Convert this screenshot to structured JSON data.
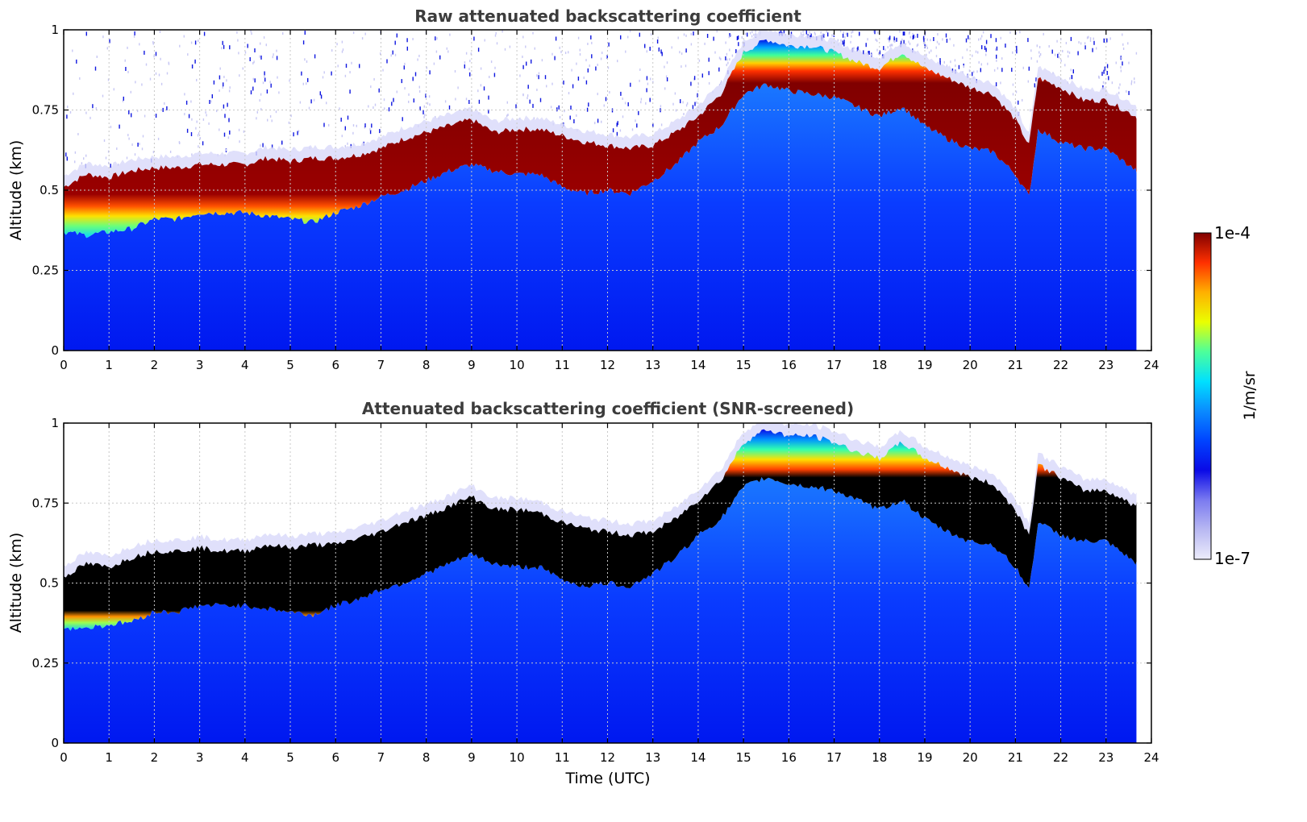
{
  "chart_data": [
    {
      "type": "heatmap",
      "title": "Raw attenuated backscattering coefficient",
      "xlabel": "",
      "ylabel": "Altitude (km)",
      "xlim": [
        0,
        24
      ],
      "ylim": [
        0,
        1
      ],
      "x_ticks": [
        "0",
        "1",
        "2",
        "3",
        "4",
        "5",
        "6",
        "7",
        "8",
        "9",
        "10",
        "11",
        "12",
        "13",
        "14",
        "15",
        "16",
        "17",
        "18",
        "19",
        "20",
        "21",
        "22",
        "23",
        "24"
      ],
      "y_ticks": [
        "0",
        "0.25",
        "0.5",
        "0.75",
        "1"
      ],
      "grid": true,
      "data_end_hour": 23.67,
      "layer_top_km": [
        [
          0,
          0.51
        ],
        [
          0.5,
          0.55
        ],
        [
          1,
          0.54
        ],
        [
          1.5,
          0.56
        ],
        [
          2,
          0.57
        ],
        [
          2.5,
          0.57
        ],
        [
          3,
          0.58
        ],
        [
          3.5,
          0.58
        ],
        [
          4,
          0.58
        ],
        [
          4.5,
          0.6
        ],
        [
          5,
          0.59
        ],
        [
          5.5,
          0.6
        ],
        [
          6,
          0.6
        ],
        [
          6.5,
          0.61
        ],
        [
          7,
          0.63
        ],
        [
          7.5,
          0.66
        ],
        [
          8,
          0.68
        ],
        [
          8.5,
          0.7
        ],
        [
          9,
          0.72
        ],
        [
          9.5,
          0.68
        ],
        [
          10,
          0.69
        ],
        [
          10.5,
          0.69
        ],
        [
          11,
          0.67
        ],
        [
          11.5,
          0.65
        ],
        [
          12,
          0.64
        ],
        [
          12.5,
          0.63
        ],
        [
          13,
          0.64
        ],
        [
          13.5,
          0.68
        ],
        [
          14,
          0.73
        ],
        [
          14.5,
          0.8
        ],
        [
          15,
          0.93
        ],
        [
          15.5,
          0.97
        ],
        [
          16,
          0.95
        ],
        [
          16.5,
          0.95
        ],
        [
          17,
          0.93
        ],
        [
          17.5,
          0.9
        ],
        [
          18,
          0.88
        ],
        [
          18.5,
          0.93
        ],
        [
          19,
          0.88
        ],
        [
          19.5,
          0.85
        ],
        [
          20,
          0.82
        ],
        [
          20.5,
          0.8
        ],
        [
          21,
          0.72
        ],
        [
          21.3,
          0.64
        ],
        [
          21.5,
          0.85
        ],
        [
          22,
          0.82
        ],
        [
          22.5,
          0.78
        ],
        [
          23,
          0.78
        ],
        [
          23.67,
          0.73
        ]
      ],
      "layer_base_km": [
        [
          0,
          0.37
        ],
        [
          0.5,
          0.36
        ],
        [
          1,
          0.37
        ],
        [
          1.5,
          0.38
        ],
        [
          2,
          0.41
        ],
        [
          2.5,
          0.41
        ],
        [
          3,
          0.43
        ],
        [
          3.5,
          0.43
        ],
        [
          4,
          0.43
        ],
        [
          4.5,
          0.42
        ],
        [
          5,
          0.41
        ],
        [
          5.5,
          0.4
        ],
        [
          6,
          0.43
        ],
        [
          6.5,
          0.45
        ],
        [
          7,
          0.48
        ],
        [
          7.5,
          0.5
        ],
        [
          8,
          0.53
        ],
        [
          8.5,
          0.56
        ],
        [
          9,
          0.58
        ],
        [
          9.5,
          0.56
        ],
        [
          10,
          0.55
        ],
        [
          10.5,
          0.55
        ],
        [
          11,
          0.51
        ],
        [
          11.5,
          0.49
        ],
        [
          12,
          0.5
        ],
        [
          12.5,
          0.49
        ],
        [
          13,
          0.53
        ],
        [
          13.5,
          0.58
        ],
        [
          14,
          0.65
        ],
        [
          14.5,
          0.7
        ],
        [
          15,
          0.8
        ],
        [
          15.5,
          0.83
        ],
        [
          16,
          0.81
        ],
        [
          16.5,
          0.8
        ],
        [
          17,
          0.79
        ],
        [
          17.5,
          0.76
        ],
        [
          18,
          0.73
        ],
        [
          18.5,
          0.76
        ],
        [
          19,
          0.7
        ],
        [
          19.5,
          0.66
        ],
        [
          20,
          0.63
        ],
        [
          20.5,
          0.62
        ],
        [
          21,
          0.55
        ],
        [
          21.3,
          0.48
        ],
        [
          21.5,
          0.69
        ],
        [
          22,
          0.65
        ],
        [
          22.5,
          0.63
        ],
        [
          23,
          0.63
        ],
        [
          23.67,
          0.56
        ]
      ]
    },
    {
      "type": "heatmap",
      "title": "Attenuated backscattering coefficient (SNR-screened)",
      "xlabel": "Time (UTC)",
      "ylabel": "Altitude (km)",
      "xlim": [
        0,
        24
      ],
      "ylim": [
        0,
        1
      ],
      "x_ticks": [
        "0",
        "1",
        "2",
        "3",
        "4",
        "5",
        "6",
        "7",
        "8",
        "9",
        "10",
        "11",
        "12",
        "13",
        "14",
        "15",
        "16",
        "17",
        "18",
        "19",
        "20",
        "21",
        "22",
        "23",
        "24"
      ],
      "y_ticks": [
        "0",
        "0.25",
        "0.5",
        "0.75",
        "1"
      ],
      "grid": true,
      "data_end_hour": 23.67,
      "saturated_color": "#000000",
      "layer_top_km": [
        [
          0,
          0.52
        ],
        [
          0.5,
          0.56
        ],
        [
          1,
          0.55
        ],
        [
          1.5,
          0.58
        ],
        [
          2,
          0.6
        ],
        [
          2.5,
          0.6
        ],
        [
          3,
          0.61
        ],
        [
          3.5,
          0.6
        ],
        [
          4,
          0.6
        ],
        [
          4.5,
          0.62
        ],
        [
          5,
          0.61
        ],
        [
          5.5,
          0.62
        ],
        [
          6,
          0.62
        ],
        [
          6.5,
          0.64
        ],
        [
          7,
          0.66
        ],
        [
          7.5,
          0.69
        ],
        [
          8,
          0.71
        ],
        [
          8.5,
          0.74
        ],
        [
          9,
          0.77
        ],
        [
          9.5,
          0.73
        ],
        [
          10,
          0.73
        ],
        [
          10.5,
          0.72
        ],
        [
          11,
          0.69
        ],
        [
          11.5,
          0.67
        ],
        [
          12,
          0.66
        ],
        [
          12.5,
          0.65
        ],
        [
          13,
          0.66
        ],
        [
          13.5,
          0.7
        ],
        [
          14,
          0.76
        ],
        [
          14.5,
          0.82
        ],
        [
          15,
          0.94
        ],
        [
          15.5,
          0.98
        ],
        [
          16,
          0.96
        ],
        [
          16.5,
          0.96
        ],
        [
          17,
          0.94
        ],
        [
          17.5,
          0.91
        ],
        [
          18,
          0.89
        ],
        [
          18.5,
          0.94
        ],
        [
          19,
          0.89
        ],
        [
          19.5,
          0.86
        ],
        [
          20,
          0.83
        ],
        [
          20.5,
          0.81
        ],
        [
          21,
          0.73
        ],
        [
          21.3,
          0.65
        ],
        [
          21.5,
          0.87
        ],
        [
          22,
          0.83
        ],
        [
          22.5,
          0.79
        ],
        [
          23,
          0.79
        ],
        [
          23.67,
          0.74
        ]
      ],
      "layer_base_km": [
        [
          0,
          0.36
        ],
        [
          0.5,
          0.36
        ],
        [
          1,
          0.37
        ],
        [
          1.5,
          0.38
        ],
        [
          2,
          0.41
        ],
        [
          2.5,
          0.41
        ],
        [
          3,
          0.43
        ],
        [
          3.5,
          0.43
        ],
        [
          4,
          0.43
        ],
        [
          4.5,
          0.42
        ],
        [
          5,
          0.41
        ],
        [
          5.5,
          0.4
        ],
        [
          6,
          0.43
        ],
        [
          6.5,
          0.45
        ],
        [
          7,
          0.48
        ],
        [
          7.5,
          0.5
        ],
        [
          8,
          0.53
        ],
        [
          8.5,
          0.56
        ],
        [
          9,
          0.59
        ],
        [
          9.5,
          0.56
        ],
        [
          10,
          0.55
        ],
        [
          10.5,
          0.55
        ],
        [
          11,
          0.51
        ],
        [
          11.5,
          0.49
        ],
        [
          12,
          0.5
        ],
        [
          12.5,
          0.49
        ],
        [
          13,
          0.53
        ],
        [
          13.5,
          0.58
        ],
        [
          14,
          0.65
        ],
        [
          14.5,
          0.7
        ],
        [
          15,
          0.8
        ],
        [
          15.5,
          0.83
        ],
        [
          16,
          0.81
        ],
        [
          16.5,
          0.8
        ],
        [
          17,
          0.79
        ],
        [
          17.5,
          0.76
        ],
        [
          18,
          0.73
        ],
        [
          18.5,
          0.76
        ],
        [
          19,
          0.7
        ],
        [
          19.5,
          0.66
        ],
        [
          20,
          0.63
        ],
        [
          20.5,
          0.62
        ],
        [
          21,
          0.55
        ],
        [
          21.3,
          0.48
        ],
        [
          21.5,
          0.69
        ],
        [
          22,
          0.65
        ],
        [
          22.5,
          0.63
        ],
        [
          23,
          0.63
        ],
        [
          23.67,
          0.56
        ]
      ]
    }
  ],
  "colorbar": {
    "label": "1/m/sr",
    "max_label": "1e-4",
    "min_label": "1e-7",
    "scale": "log",
    "colormap": [
      "#ececfb",
      "#b8b8f2",
      "#7a7af0",
      "#0a0ae6",
      "#0044ff",
      "#0a8cff",
      "#00e0ff",
      "#4dff9a",
      "#eaff00",
      "#ffb000",
      "#ff3000",
      "#800000"
    ]
  },
  "colors": {
    "title_text": "#3c3c3c",
    "grid": "#bfbfbf",
    "background_blue": "#0c22f5",
    "profile_blue": "#1565ff",
    "layer_core": "#800000"
  }
}
